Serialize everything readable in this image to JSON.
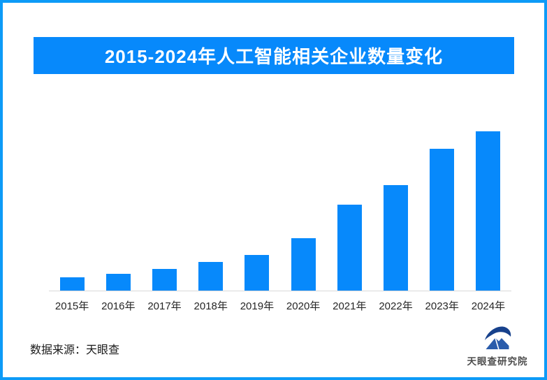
{
  "frame": {
    "border_color": "#0d9bf7",
    "background_color": "#ffffff"
  },
  "title_banner": {
    "text": "2015-2024年人工智能相关企业数量变化",
    "bg_color": "#0789fb",
    "text_color": "#ffffff"
  },
  "chart_data": {
    "type": "bar",
    "title": "2015-2024年人工智能相关企业数量变化",
    "categories": [
      "2015年",
      "2016年",
      "2017年",
      "2018年",
      "2019年",
      "2020年",
      "2021年",
      "2022年",
      "2023年",
      "2024年"
    ],
    "values": [
      8.4,
      10.7,
      13.8,
      17.8,
      22.3,
      33.1,
      53.9,
      66.2,
      89.0,
      100
    ],
    "values_note": "No numeric y-axis, gridlines or data labels are shown in the image; values are relative bar heights with 2024 = 100.",
    "xlabel": "",
    "ylabel": "",
    "ylim": [
      0,
      117
    ],
    "grid": false,
    "legend": false,
    "bar_color": "#0789fb",
    "axis_line_color": "#d9d9d9",
    "tick_label_color": "#262626"
  },
  "footer": {
    "source_text": "数据来源：天眼查",
    "logo_text": "天眼查研究院",
    "logo_swoosh_color": "#17418c",
    "logo_house_color": "#2a5cab"
  }
}
